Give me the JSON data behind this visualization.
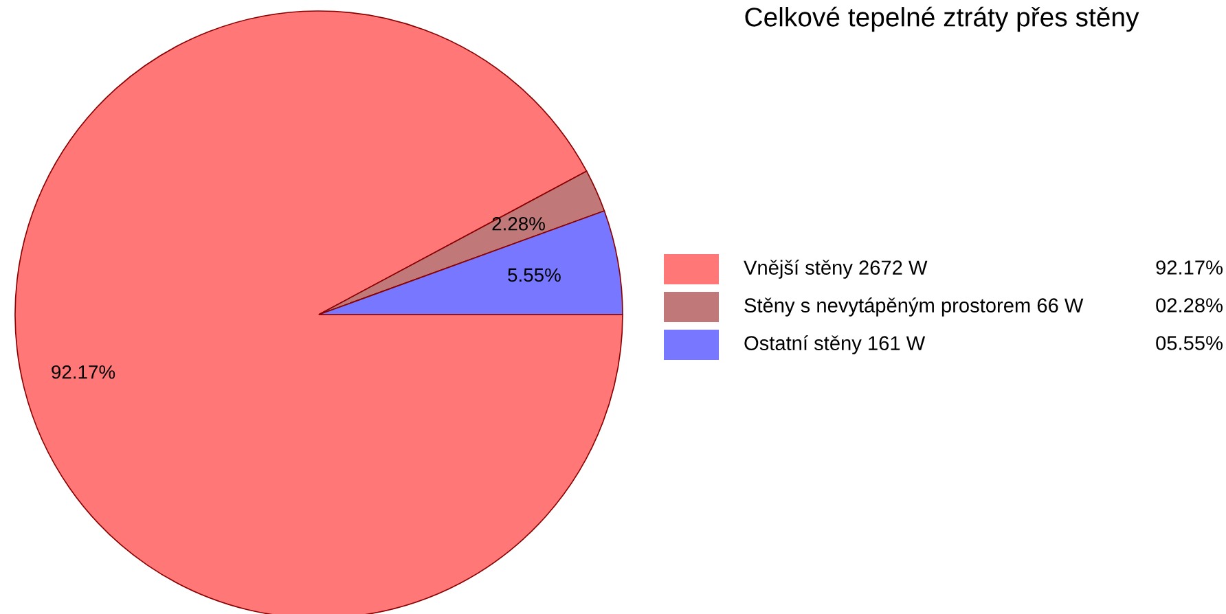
{
  "chart_data": {
    "type": "pie",
    "title": "Celkové tepelné ztráty přes stěny",
    "categories": [
      "Vnější stěny 2672 W",
      "Stěny s nevytápěným prostorem 66 W",
      "Ostatní stěny 161 W"
    ],
    "values": [
      92.17,
      2.28,
      5.55
    ],
    "value_labels": [
      "92.17%",
      "2.28%",
      "5.55%"
    ],
    "colors": [
      "#ff7777",
      "#c07878",
      "#7777ff"
    ],
    "legend": "right",
    "annotations": [
      "92.17%",
      "02.28%",
      "05.55%"
    ]
  }
}
